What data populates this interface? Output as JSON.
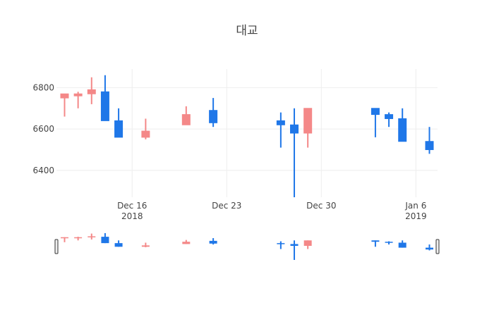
{
  "chart_data": {
    "type": "candlestick",
    "title": "대교",
    "xlabel": "",
    "ylabel": "",
    "ylim": [
      6270,
      6890
    ],
    "y_ticks": [
      6400,
      6600,
      6800
    ],
    "x_ticks": [
      {
        "date": "2018-12-16",
        "label": "Dec 16",
        "sublabel": "2018"
      },
      {
        "date": "2018-12-23",
        "label": "Dec 23",
        "sublabel": ""
      },
      {
        "date": "2018-12-30",
        "label": "Dec 30",
        "sublabel": ""
      },
      {
        "date": "2019-01-06",
        "label": "Jan 6",
        "sublabel": "2019"
      }
    ],
    "grid": true,
    "rangeslider": true,
    "increasing_color": "#f48888",
    "decreasing_color": "#1f77e8",
    "candles": [
      {
        "date": "2018-12-11",
        "open": 6750,
        "high": 6770,
        "low": 6660,
        "close": 6770
      },
      {
        "date": "2018-12-12",
        "open": 6760,
        "high": 6780,
        "low": 6700,
        "close": 6770
      },
      {
        "date": "2018-12-13",
        "open": 6770,
        "high": 6850,
        "low": 6720,
        "close": 6790
      },
      {
        "date": "2018-12-14",
        "open": 6780,
        "high": 6860,
        "low": 6640,
        "close": 6640
      },
      {
        "date": "2018-12-15",
        "open": 6640,
        "high": 6700,
        "low": 6560,
        "close": 6560
      },
      {
        "date": "2018-12-17",
        "open": 6560,
        "high": 6650,
        "low": 6550,
        "close": 6590
      },
      {
        "date": "2018-12-20",
        "open": 6620,
        "high": 6710,
        "low": 6620,
        "close": 6670
      },
      {
        "date": "2018-12-22",
        "open": 6690,
        "high": 6750,
        "low": 6610,
        "close": 6630
      },
      {
        "date": "2018-12-27",
        "open": 6640,
        "high": 6680,
        "low": 6510,
        "close": 6620
      },
      {
        "date": "2018-12-28",
        "open": 6620,
        "high": 6700,
        "low": 6270,
        "close": 6580
      },
      {
        "date": "2018-12-29",
        "open": 6580,
        "high": 6700,
        "low": 6510,
        "close": 6700
      },
      {
        "date": "2019-01-03",
        "open": 6700,
        "high": 6700,
        "low": 6560,
        "close": 6670
      },
      {
        "date": "2019-01-04",
        "open": 6670,
        "high": 6680,
        "low": 6610,
        "close": 6650
      },
      {
        "date": "2019-01-05",
        "open": 6650,
        "high": 6700,
        "low": 6540,
        "close": 6540
      },
      {
        "date": "2019-01-07",
        "open": 6540,
        "high": 6610,
        "low": 6480,
        "close": 6500
      }
    ]
  }
}
